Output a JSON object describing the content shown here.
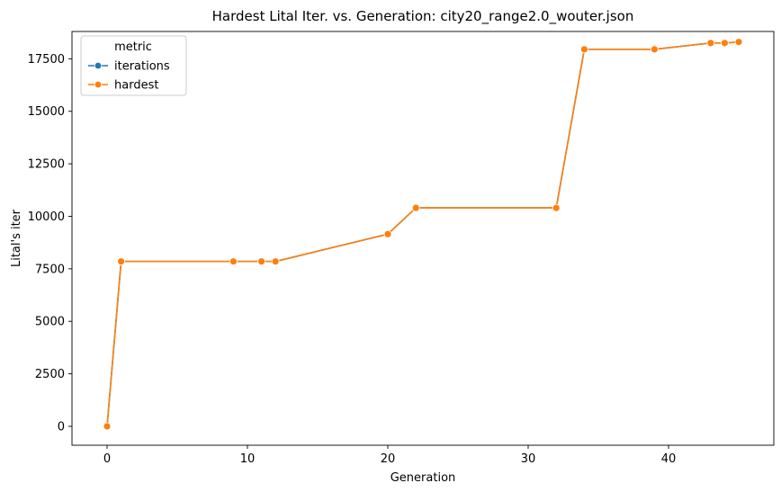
{
  "chart_data": {
    "type": "line",
    "title": "Hardest Lital Iter. vs. Generation: city20_range2.0_wouter.json",
    "xlabel": "Generation",
    "ylabel": "Lital's iter",
    "xlim": [
      -2.5,
      47.5
    ],
    "ylim": [
      -900,
      18800
    ],
    "x_ticks": [
      0,
      10,
      20,
      30,
      40
    ],
    "y_ticks": [
      0,
      2500,
      5000,
      7500,
      10000,
      12500,
      15000,
      17500
    ],
    "grid": false,
    "legend": {
      "title": "metric",
      "placement": "top-left"
    },
    "x": [
      0,
      1,
      9,
      11,
      12,
      20,
      22,
      32,
      34,
      39,
      43,
      44,
      45
    ],
    "series": [
      {
        "name": "iterations",
        "color": "#1f77b4",
        "marker": "circle",
        "values": [
          0,
          7850,
          7850,
          7850,
          7850,
          9150,
          10400,
          10400,
          17950,
          17950,
          18250,
          18250,
          18300
        ]
      },
      {
        "name": "hardest",
        "color": "#ff7f0e",
        "marker": "circle",
        "values": [
          0,
          7850,
          7850,
          7850,
          7850,
          9150,
          10400,
          10400,
          17950,
          17950,
          18250,
          18250,
          18300
        ]
      }
    ]
  }
}
